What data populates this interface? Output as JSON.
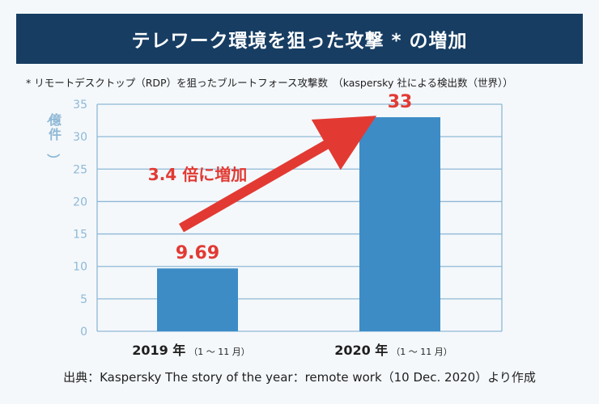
{
  "banner": {
    "title": "テレワーク環境を狙った攻撃 * の増加"
  },
  "subtitle": "* リモートデスクトップ（RDP）を狙ったブルートフォース攻撃数　（kaspersky 社による検出数（世界））",
  "source": "出典：Kaspersky The story of the year：remote work（10 Dec. 2020）より作成",
  "colors": {
    "banner": "#173d62",
    "bar": "#3d8cc6",
    "accent": "#e23a33",
    "axis": "#8fb8d6",
    "background": "#f4f8fb"
  },
  "chart_data": {
    "type": "bar",
    "categories": [
      "2019 年",
      "2020 年"
    ],
    "category_notes": [
      "（1 ～ 11 月）",
      "（1 ～ 11 月）"
    ],
    "values": [
      9.69,
      33
    ],
    "value_labels": [
      "9.69",
      "33"
    ],
    "ylabel": "（億件）",
    "ylim": [
      0,
      35
    ],
    "yticks": [
      0,
      5,
      10,
      15,
      20,
      25,
      30,
      35
    ],
    "grid": true,
    "annotation": {
      "text": "3.4 倍に増加",
      "arrow_from": "2019 年",
      "arrow_to": "2020 年"
    }
  }
}
